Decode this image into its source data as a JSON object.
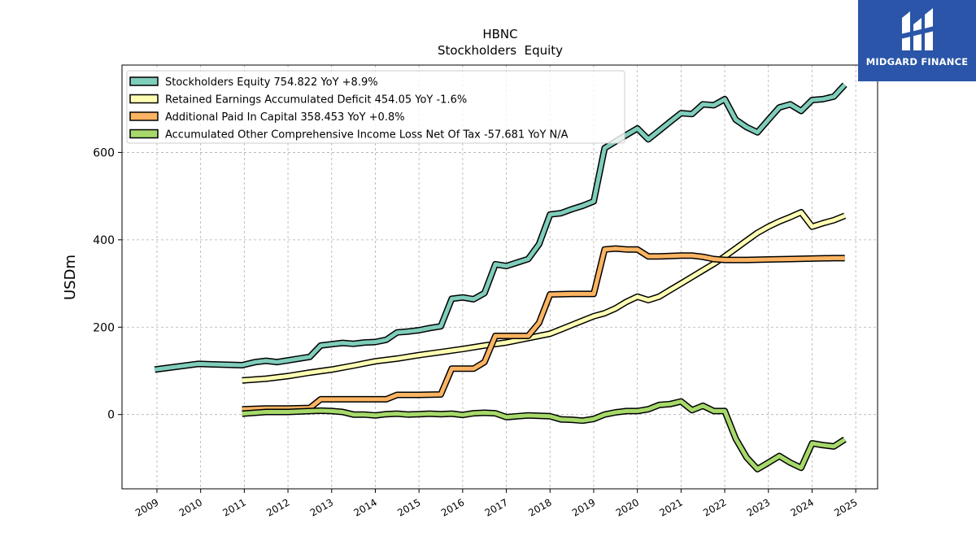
{
  "chart_data": {
    "type": "line",
    "title": "HBNC",
    "subtitle": "Stockholders  Equity",
    "ylabel": "USDm",
    "xlabel": "",
    "xlim": [
      2008.2,
      2025.5
    ],
    "ylim": [
      -170,
      800
    ],
    "xticks": [
      "2009",
      "2010",
      "2011",
      "2012",
      "2013",
      "2014",
      "2015",
      "2016",
      "2017",
      "2018",
      "2019",
      "2020",
      "2021",
      "2022",
      "2023",
      "2024",
      "2025"
    ],
    "yticks": [
      0,
      200,
      400,
      600
    ],
    "grid": true,
    "legend_position": "top-left",
    "series": [
      {
        "name": "Stockholders Equity",
        "legend_label": "Stockholders Equity  754.822 YoY +8.9%",
        "color": "#7fcdbb",
        "points": [
          [
            2008.95,
            103
          ],
          [
            2009.95,
            116
          ],
          [
            2010.95,
            113
          ],
          [
            2011.25,
            120
          ],
          [
            2011.5,
            123
          ],
          [
            2011.75,
            120
          ],
          [
            2012.0,
            124
          ],
          [
            2012.25,
            128
          ],
          [
            2012.5,
            132
          ],
          [
            2012.75,
            158
          ],
          [
            2013.0,
            161
          ],
          [
            2013.25,
            164
          ],
          [
            2013.5,
            162
          ],
          [
            2013.75,
            165
          ],
          [
            2014.0,
            166
          ],
          [
            2014.25,
            171
          ],
          [
            2014.5,
            188
          ],
          [
            2014.75,
            190
          ],
          [
            2015.0,
            193
          ],
          [
            2015.25,
            198
          ],
          [
            2015.5,
            202
          ],
          [
            2015.75,
            265
          ],
          [
            2016.0,
            268
          ],
          [
            2016.25,
            264
          ],
          [
            2016.5,
            278
          ],
          [
            2016.75,
            344
          ],
          [
            2017.0,
            340
          ],
          [
            2017.25,
            348
          ],
          [
            2017.5,
            356
          ],
          [
            2017.75,
            390
          ],
          [
            2018.0,
            458
          ],
          [
            2018.25,
            461
          ],
          [
            2018.5,
            470
          ],
          [
            2018.75,
            478
          ],
          [
            2019.0,
            488
          ],
          [
            2019.25,
            610
          ],
          [
            2019.5,
            625
          ],
          [
            2019.75,
            640
          ],
          [
            2020.0,
            655
          ],
          [
            2020.25,
            630
          ],
          [
            2020.5,
            650
          ],
          [
            2020.75,
            670
          ],
          [
            2021.0,
            690
          ],
          [
            2021.25,
            688
          ],
          [
            2021.5,
            710
          ],
          [
            2021.75,
            708
          ],
          [
            2022.0,
            722
          ],
          [
            2022.25,
            675
          ],
          [
            2022.5,
            658
          ],
          [
            2022.75,
            646
          ],
          [
            2023.0,
            675
          ],
          [
            2023.25,
            703
          ],
          [
            2023.5,
            710
          ],
          [
            2023.75,
            695
          ],
          [
            2024.0,
            720
          ],
          [
            2024.25,
            722
          ],
          [
            2024.5,
            728
          ],
          [
            2024.75,
            755
          ]
        ]
      },
      {
        "name": "Retained Earnings Accumulated Deficit",
        "legend_label": "Retained Earnings Accumulated Deficit  454.05 YoY -1.6%",
        "color": "#ffffb3",
        "points": [
          [
            2010.95,
            78
          ],
          [
            2011.5,
            82
          ],
          [
            2012.0,
            88
          ],
          [
            2012.5,
            96
          ],
          [
            2013.0,
            103
          ],
          [
            2013.5,
            112
          ],
          [
            2014.0,
            122
          ],
          [
            2014.5,
            128
          ],
          [
            2015.0,
            136
          ],
          [
            2015.5,
            143
          ],
          [
            2016.0,
            150
          ],
          [
            2016.5,
            158
          ],
          [
            2017.0,
            165
          ],
          [
            2017.5,
            175
          ],
          [
            2018.0,
            185
          ],
          [
            2018.25,
            195
          ],
          [
            2018.5,
            205
          ],
          [
            2018.75,
            215
          ],
          [
            2019.0,
            225
          ],
          [
            2019.25,
            232
          ],
          [
            2019.5,
            243
          ],
          [
            2019.75,
            258
          ],
          [
            2020.0,
            270
          ],
          [
            2020.25,
            262
          ],
          [
            2020.5,
            270
          ],
          [
            2020.75,
            285
          ],
          [
            2021.0,
            300
          ],
          [
            2021.25,
            315
          ],
          [
            2021.5,
            330
          ],
          [
            2021.75,
            345
          ],
          [
            2022.0,
            362
          ],
          [
            2022.25,
            380
          ],
          [
            2022.5,
            398
          ],
          [
            2022.75,
            416
          ],
          [
            2023.0,
            430
          ],
          [
            2023.25,
            442
          ],
          [
            2023.5,
            452
          ],
          [
            2023.75,
            463
          ],
          [
            2024.0,
            430
          ],
          [
            2024.25,
            438
          ],
          [
            2024.5,
            445
          ],
          [
            2024.75,
            455
          ]
        ]
      },
      {
        "name": "Additional Paid In Capital",
        "legend_label": "Additional Paid In Capital  358.453 YoY +0.8%",
        "color": "#fdb462",
        "points": [
          [
            2010.95,
            12
          ],
          [
            2011.5,
            14
          ],
          [
            2012.0,
            14
          ],
          [
            2012.5,
            15
          ],
          [
            2012.75,
            35
          ],
          [
            2013.0,
            35
          ],
          [
            2013.5,
            35
          ],
          [
            2014.0,
            35
          ],
          [
            2014.25,
            35
          ],
          [
            2014.5,
            45
          ],
          [
            2015.0,
            45
          ],
          [
            2015.5,
            46
          ],
          [
            2015.75,
            105
          ],
          [
            2016.0,
            105
          ],
          [
            2016.25,
            105
          ],
          [
            2016.5,
            120
          ],
          [
            2016.75,
            180
          ],
          [
            2017.0,
            180
          ],
          [
            2017.25,
            180
          ],
          [
            2017.5,
            180
          ],
          [
            2017.75,
            210
          ],
          [
            2018.0,
            275
          ],
          [
            2018.5,
            276
          ],
          [
            2019.0,
            276
          ],
          [
            2019.25,
            378
          ],
          [
            2019.5,
            380
          ],
          [
            2019.75,
            378
          ],
          [
            2020.0,
            378
          ],
          [
            2020.25,
            362
          ],
          [
            2020.5,
            362
          ],
          [
            2021.0,
            364
          ],
          [
            2021.25,
            364
          ],
          [
            2021.5,
            361
          ],
          [
            2021.75,
            356
          ],
          [
            2022.0,
            354
          ],
          [
            2022.5,
            354
          ],
          [
            2023.0,
            355
          ],
          [
            2023.5,
            356
          ],
          [
            2024.0,
            357
          ],
          [
            2024.5,
            358
          ],
          [
            2024.75,
            358
          ]
        ]
      },
      {
        "name": "Accumulated Other Comprehensive Income Loss Net Of Tax",
        "legend_label": "Accumulated Other Comprehensive Income Loss Net Of Tax  -57.681 YoY N/A",
        "color": "#a6d96a",
        "points": [
          [
            2010.95,
            2
          ],
          [
            2011.5,
            6
          ],
          [
            2012.0,
            6
          ],
          [
            2012.5,
            8
          ],
          [
            2012.75,
            9
          ],
          [
            2013.0,
            8
          ],
          [
            2013.25,
            6
          ],
          [
            2013.5,
            0
          ],
          [
            2013.75,
            0
          ],
          [
            2014.0,
            -2
          ],
          [
            2014.25,
            1
          ],
          [
            2014.5,
            2
          ],
          [
            2014.75,
            0
          ],
          [
            2015.0,
            1
          ],
          [
            2015.25,
            2
          ],
          [
            2015.5,
            1
          ],
          [
            2015.75,
            2
          ],
          [
            2016.0,
            -1
          ],
          [
            2016.25,
            3
          ],
          [
            2016.5,
            4
          ],
          [
            2016.75,
            3
          ],
          [
            2017.0,
            -6
          ],
          [
            2017.25,
            -4
          ],
          [
            2017.5,
            -2
          ],
          [
            2017.75,
            -3
          ],
          [
            2018.0,
            -4
          ],
          [
            2018.25,
            -11
          ],
          [
            2018.5,
            -12
          ],
          [
            2018.75,
            -14
          ],
          [
            2019.0,
            -10
          ],
          [
            2019.25,
            0
          ],
          [
            2019.5,
            5
          ],
          [
            2019.75,
            8
          ],
          [
            2020.0,
            8
          ],
          [
            2020.25,
            12
          ],
          [
            2020.5,
            22
          ],
          [
            2020.75,
            24
          ],
          [
            2021.0,
            30
          ],
          [
            2021.25,
            10
          ],
          [
            2021.5,
            20
          ],
          [
            2021.75,
            8
          ],
          [
            2022.0,
            8
          ],
          [
            2022.25,
            -55
          ],
          [
            2022.5,
            -98
          ],
          [
            2022.75,
            -125
          ],
          [
            2023.0,
            -110
          ],
          [
            2023.25,
            -95
          ],
          [
            2023.5,
            -110
          ],
          [
            2023.75,
            -122
          ],
          [
            2024.0,
            -66
          ],
          [
            2024.25,
            -70
          ],
          [
            2024.5,
            -73
          ],
          [
            2024.75,
            -57
          ]
        ]
      }
    ]
  },
  "logo": {
    "text": "MIDGARD FINANCE",
    "icon": "midgard-monogram-icon",
    "bg_color": "#2a55a8"
  }
}
